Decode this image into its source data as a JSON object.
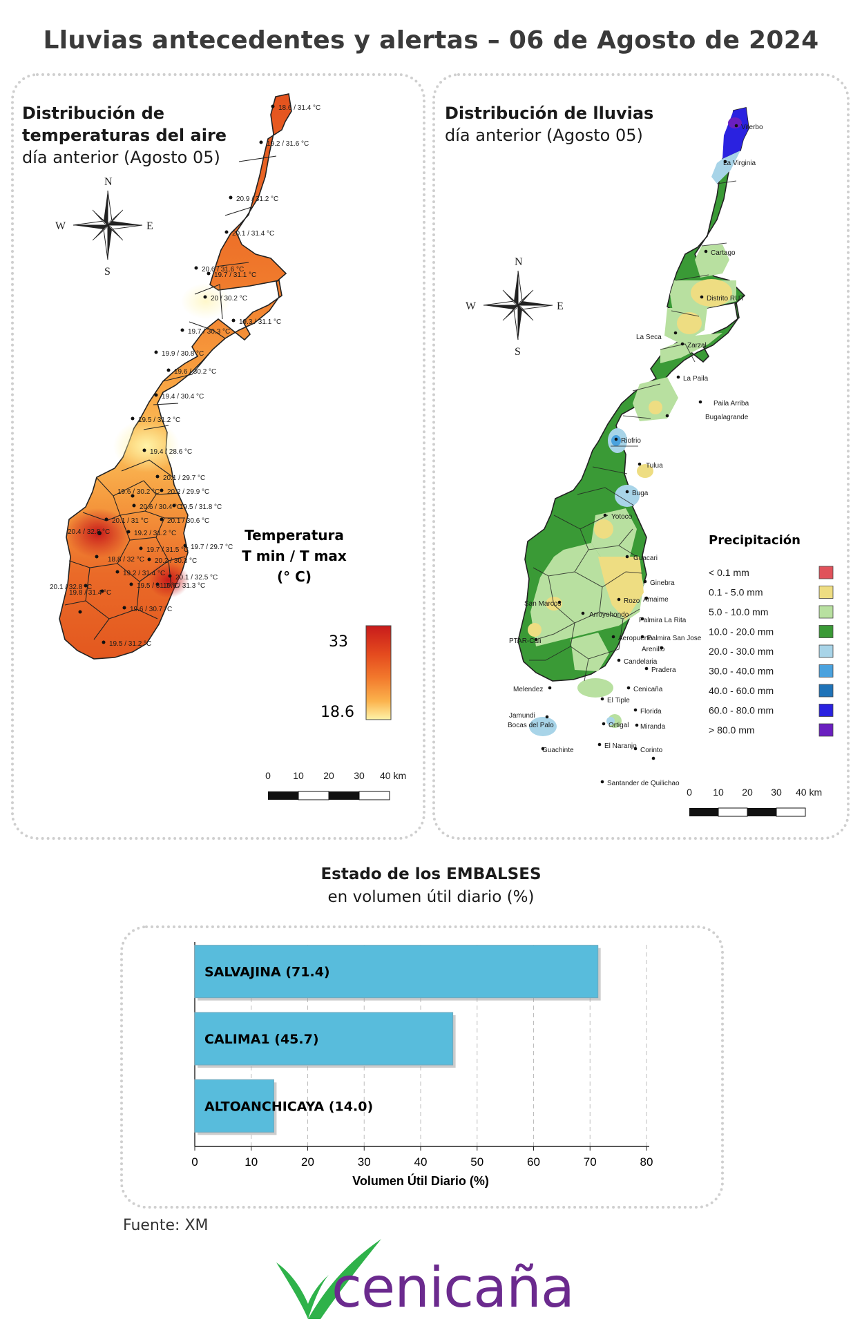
{
  "title": "Lluvias antecedentes y alertas – 06 de Agosto de 2024",
  "temp_panel": {
    "title_line1": "Distribución de",
    "title_line2": "temperaturas del aire",
    "subtitle": "día anterior (Agosto 05)",
    "legend_title_1": "Temperatura",
    "legend_title_2": "T min / T max",
    "legend_title_3": "(° C)",
    "legend_max": "33",
    "legend_min": "18.6",
    "colors": [
      "#fff3a8",
      "#fbb24c",
      "#f2782c",
      "#e44a1e",
      "#c81b1b"
    ],
    "stations": [
      "18.6 / 31.4 °C",
      "19.2 / 31.6 °C",
      "20.9 / 31.2 °C",
      "20.1 / 31.4 °C",
      "20.6 / 31.6 °C",
      "19.7 / 31.1 °C",
      "20 / 30.2 °C",
      "19.3 / 31.1 °C",
      "19.7 / 30.3 °C",
      "19.9 / 30.8 °C",
      "19.6 / 30.2 °C",
      "19.4 / 30.4 °C",
      "19.5 / 31.2 °C",
      "19.4 / 28.6 °C",
      "20.1 / 29.7 °C",
      "20.2 / 29.9 °C",
      "19.6 / 30.2 °C",
      "20.6 / 30.4 °C",
      "19.5 / 31.8 °C",
      "20.1 / 31 °C",
      "20.1 / 30.6 °C",
      "20.4 / 32.8 °C",
      "19.2 / 31.2 °C",
      "19.7 / 31.5 °C",
      "19.7 / 29.7 °C",
      "18.8 / 32 °C",
      "20.2 / 30.3 °C",
      "19.2 / 31.4 °C",
      "20.1 / 32.5 °C",
      "20.1 / 32.8 °C",
      "19.5 / 31.7 °C",
      "19.6 / 31.3 °C",
      "19.8 / 31.4 °C",
      "19.6 / 30.7 °C",
      "19.5 / 31.2 °C"
    ]
  },
  "rain_panel": {
    "title_line1": "Distribución de lluvias",
    "subtitle": "día anterior (Agosto 05)",
    "legend_title": "Precipitación",
    "legend": [
      {
        "label": "< 0.1 mm",
        "color": "#e0525a"
      },
      {
        "label": "0.1 - 5.0 mm",
        "color": "#eedd82"
      },
      {
        "label": "5.0 - 10.0 mm",
        "color": "#b8e0a0"
      },
      {
        "label": "10.0 - 20.0 mm",
        "color": "#3a9a36"
      },
      {
        "label": "20.0 - 30.0 mm",
        "color": "#a8d4e8"
      },
      {
        "label": "30.0 - 40.0 mm",
        "color": "#4aa2de"
      },
      {
        "label": "40.0 - 60.0 mm",
        "color": "#1f73b8"
      },
      {
        "label": "60.0 - 80.0 mm",
        "color": "#2a22e0"
      },
      {
        "label": "> 80.0 mm",
        "color": "#6a1fc0"
      }
    ],
    "places": [
      "Viterbo",
      "La Virginia",
      "Cartago",
      "Distrito RUT",
      "La Seca",
      "Zarzal",
      "La Paila",
      "Paila Arriba",
      "Bugalagrande",
      "Riofrio",
      "Tulua",
      "Buga",
      "Yotoco",
      "Guacari",
      "Ginebra",
      "Amaime",
      "San Marcos",
      "Rozo",
      "Palmira La Rita",
      "Arroyohondo",
      "Palmira San Jose",
      "PTAR-Cali",
      "Aeropuerto",
      "Arenillo",
      "Candelaria",
      "Pradera",
      "Melendez",
      "Cenicaña",
      "El Tiple",
      "Florida",
      "Jamundi",
      "Bocas del Palo",
      "Ortigal",
      "Miranda",
      "El Naranjo",
      "Guachinte",
      "Corinto",
      "Santander de Quilichao"
    ]
  },
  "compass": {
    "n": "N",
    "s": "S",
    "e": "E",
    "w": "W"
  },
  "scale_labels": [
    "0",
    "10",
    "20",
    "30",
    "40 km"
  ],
  "embalses": {
    "title": "Estado de los EMBALSES",
    "subtitle": "en volumen útil diario (%)",
    "bar_color": "#58bcdc",
    "source": "Fuente: XM"
  },
  "chart_data": {
    "type": "bar",
    "orientation": "horizontal",
    "categories": [
      "SALVAJINA (71.4)",
      "CALIMA1 (45.7)",
      "ALTOANCHICAYA (14.0)"
    ],
    "values": [
      71.4,
      45.7,
      14.0
    ],
    "xlabel": "Volumen Útil Diario (%)",
    "xlim": [
      0,
      80
    ],
    "xticks": [
      "0",
      "10",
      "20",
      "30",
      "40",
      "50",
      "60",
      "70",
      "80"
    ],
    "grid": true
  },
  "brand": {
    "name": "cenicaña",
    "leaf_color": "#2fb24a",
    "text_color": "#6b2a8e"
  }
}
